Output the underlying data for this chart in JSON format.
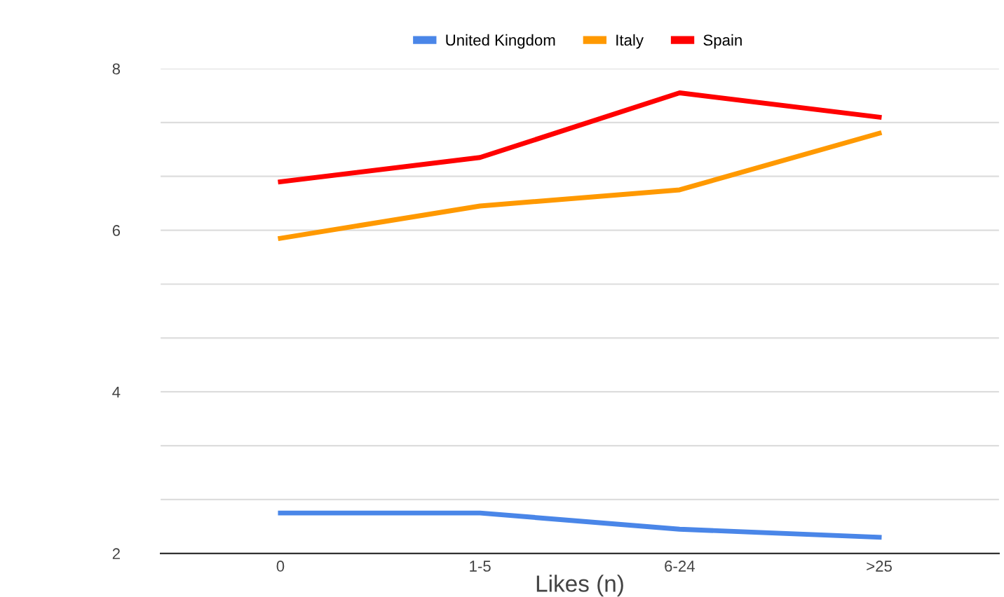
{
  "chart_data": {
    "type": "line",
    "xlabel": "Likes (n)",
    "categories": [
      "0",
      "1-5",
      "6-24",
      ">25"
    ],
    "series": [
      {
        "name": "United Kingdom",
        "color": "#4a86e8",
        "values": [
          2.5,
          2.5,
          2.3,
          2.2
        ]
      },
      {
        "name": "Italy",
        "color": "#ff9900",
        "values": [
          5.9,
          6.3,
          6.5,
          7.2
        ]
      },
      {
        "name": "Spain",
        "color": "#ff0000",
        "values": [
          6.6,
          6.9,
          7.7,
          7.4
        ]
      }
    ],
    "ylim": [
      2,
      8
    ],
    "yticks": [
      2,
      {
        "value": 2.667,
        "label": null
      },
      {
        "value": 3.333,
        "label": null
      },
      4,
      {
        "value": 4.667,
        "label": null
      },
      {
        "value": 5.333,
        "label": null
      },
      6,
      {
        "value": 6.667,
        "label": null
      },
      {
        "value": 7.333,
        "label": null
      },
      8
    ],
    "grid": "y",
    "legend": "top",
    "marker": "none",
    "line_style": "solid"
  }
}
